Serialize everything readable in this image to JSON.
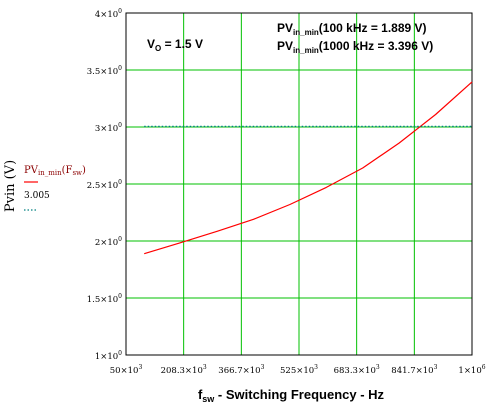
{
  "chart_data": {
    "type": "line",
    "x_axis": {
      "label_main": "f",
      "label_sub": "sw",
      "label_rest": " - Switching Frequency - Hz",
      "min": 50000,
      "max": 1000000,
      "ticks": [
        {
          "value": 50000,
          "mantissa": "50",
          "exp": "3"
        },
        {
          "value": 208300,
          "mantissa": "208.3",
          "exp": "3"
        },
        {
          "value": 366700,
          "mantissa": "366.7",
          "exp": "3"
        },
        {
          "value": 525000,
          "mantissa": "525",
          "exp": "3"
        },
        {
          "value": 683300,
          "mantissa": "683.3",
          "exp": "3"
        },
        {
          "value": 841700,
          "mantissa": "841.7",
          "exp": "3"
        },
        {
          "value": 1000000,
          "mantissa": "1",
          "exp": "6"
        }
      ]
    },
    "y_axis": {
      "label": "Pvin (V)",
      "min": 1,
      "max": 4,
      "ticks": [
        {
          "value": 1,
          "mantissa": "1",
          "exp": "0"
        },
        {
          "value": 1.5,
          "mantissa": "1.5",
          "exp": "0"
        },
        {
          "value": 2,
          "mantissa": "2",
          "exp": "0"
        },
        {
          "value": 2.5,
          "mantissa": "2.5",
          "exp": "0"
        },
        {
          "value": 3,
          "mantissa": "3",
          "exp": "0"
        },
        {
          "value": 3.5,
          "mantissa": "3.5",
          "exp": "0"
        },
        {
          "value": 4,
          "mantissa": "4",
          "exp": "0"
        }
      ]
    },
    "grid": true,
    "series": [
      {
        "name": "PVin_min(Fsw)",
        "color": "#ff0000",
        "style": "solid",
        "x": [
          100000,
          200000,
          300000,
          400000,
          500000,
          600000,
          700000,
          800000,
          900000,
          1000000
        ],
        "y": [
          1.889,
          1.985,
          2.085,
          2.19,
          2.32,
          2.47,
          2.64,
          2.86,
          3.11,
          3.396
        ]
      },
      {
        "name": "3.005",
        "color": "#008080",
        "style": "dotted",
        "x": [
          100000,
          1000000
        ],
        "y": [
          3.005,
          3.005
        ]
      }
    ],
    "annotations": {
      "vo_main": "V",
      "vo_sub": "O",
      "vo_rest": " = 1.5 V",
      "line1_main": "PV",
      "line1_sub": "in_min",
      "line1_rest": "(100 kHz = 1.889 V)",
      "line2_main": "PV",
      "line2_sub": "in_min",
      "line2_rest": "(1000 kHz = 3.396 V)"
    },
    "legend": {
      "entry1_main": "PV",
      "entry1_sub": "in_min",
      "entry1_rest": "(F",
      "entry1_sub2": "sw",
      "entry1_end": ")",
      "entry2": "3.005"
    }
  }
}
